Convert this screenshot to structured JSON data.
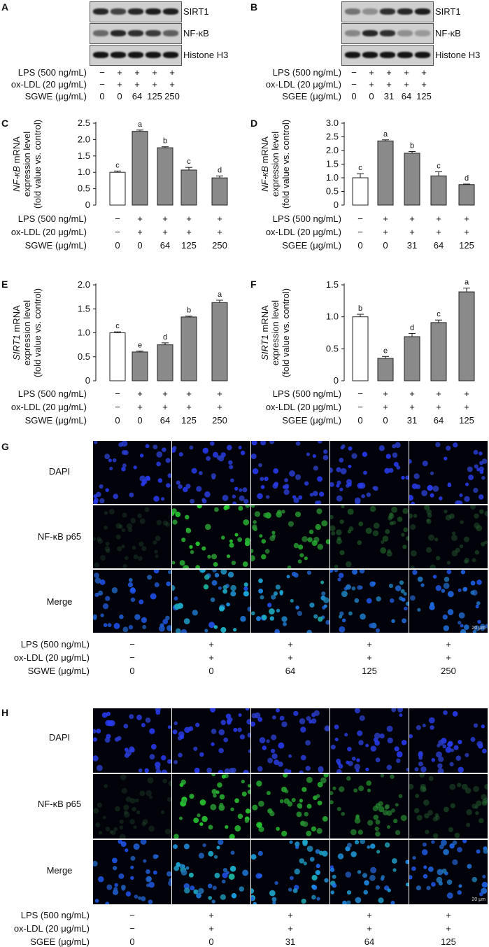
{
  "panels": {
    "A": {
      "label": "A",
      "blots": [
        "SIRT1",
        "NF-κB",
        "Histone H3"
      ],
      "conditions": [
        {
          "label": "LPS (500 ng/mL)",
          "values": [
            "−",
            "+",
            "+",
            "+",
            "+"
          ]
        },
        {
          "label": "ox-LDL (20 μg/mL)",
          "values": [
            "−",
            "+",
            "+",
            "+",
            "+"
          ]
        },
        {
          "label": "SGWE (μg/mL)",
          "values": [
            "0",
            "0",
            "64",
            "125",
            "250"
          ]
        }
      ],
      "band_intensity": {
        "SIRT1": [
          0.85,
          0.7,
          0.85,
          0.9,
          0.9
        ],
        "NF-κB": [
          0.5,
          0.85,
          0.8,
          0.75,
          0.55
        ],
        "Histone H3": [
          0.95,
          0.95,
          0.95,
          0.95,
          0.95
        ]
      }
    },
    "B": {
      "label": "B",
      "blots": [
        "SIRT1",
        "NF-κB",
        "Histone H3"
      ],
      "conditions": [
        {
          "label": "LPS (500 ng/mL)",
          "values": [
            "−",
            "+",
            "+",
            "+",
            "+"
          ]
        },
        {
          "label": "ox-LDL (20 μg/mL)",
          "values": [
            "−",
            "+",
            "+",
            "+",
            "+"
          ]
        },
        {
          "label": "SGEE (μg/mL)",
          "values": [
            "0",
            "0",
            "31",
            "64",
            "125"
          ]
        }
      ],
      "band_intensity": {
        "SIRT1": [
          0.45,
          0.3,
          0.8,
          0.85,
          0.9
        ],
        "NF-κB": [
          0.35,
          0.85,
          0.8,
          0.3,
          0.25
        ],
        "Histone H3": [
          0.95,
          0.95,
          0.95,
          0.95,
          0.95
        ]
      }
    },
    "G": {
      "label": "G",
      "rows": [
        "DAPI",
        "NF-κB p65",
        "Merge"
      ],
      "scale_bar": "20 μm",
      "conditions": [
        {
          "label": "LPS (500 ng/mL)",
          "values": [
            "−",
            "+",
            "+",
            "+",
            "+"
          ]
        },
        {
          "label": "ox-LDL (20 μg/mL)",
          "values": [
            "−",
            "+",
            "+",
            "+",
            "+"
          ]
        },
        {
          "label": "SGWE (μg/mL)",
          "values": [
            "0",
            "0",
            "64",
            "125",
            "250"
          ]
        }
      ],
      "green_level": [
        0.15,
        0.9,
        0.75,
        0.4,
        0.3
      ]
    },
    "H": {
      "label": "H",
      "rows": [
        "DAPI",
        "NF-κB p65",
        "Merge"
      ],
      "scale_bar": "20 μm",
      "conditions": [
        {
          "label": "LPS (500 ng/mL)",
          "values": [
            "−",
            "+",
            "+",
            "+",
            "+"
          ]
        },
        {
          "label": "ox-LDL (20 μg/mL)",
          "values": [
            "−",
            "+",
            "+",
            "+",
            "+"
          ]
        },
        {
          "label": "SGEE (μg/mL)",
          "values": [
            "0",
            "0",
            "31",
            "64",
            "125"
          ]
        }
      ],
      "green_level": [
        0.15,
        0.9,
        0.8,
        0.6,
        0.3
      ]
    }
  },
  "chart_data": [
    {
      "panel": "C",
      "type": "bar",
      "categories": [
        "1",
        "2",
        "3",
        "4",
        "5"
      ],
      "values": [
        1.0,
        2.25,
        1.75,
        1.07,
        0.83
      ],
      "errors": [
        0.04,
        0.04,
        0.03,
        0.08,
        0.06
      ],
      "letters": [
        "c",
        "a",
        "b",
        "c",
        "d"
      ],
      "ylabel_gene": "NF-κB",
      "ylabel_rest": " mRNA",
      "ylabel_2": "expression level",
      "ylabel_3": "(fold value vs. control)",
      "ylim": [
        0,
        2.5
      ],
      "yticks": [
        "0",
        "0.5",
        "1.0",
        "1.5",
        "2.0",
        "2.5"
      ],
      "bar_colors": [
        "#ffffff",
        "#8a8a8a",
        "#8a8a8a",
        "#8a8a8a",
        "#8a8a8a"
      ],
      "conditions": [
        {
          "label": "LPS (500 ng/mL)",
          "values": [
            "−",
            "+",
            "+",
            "+",
            "+"
          ]
        },
        {
          "label": "ox-LDL (20 μg/mL)",
          "values": [
            "−",
            "+",
            "+",
            "+",
            "+"
          ]
        },
        {
          "label": "SGWE (μg/mL)",
          "values": [
            "0",
            "0",
            "64",
            "125",
            "250"
          ]
        }
      ]
    },
    {
      "panel": "D",
      "type": "bar",
      "categories": [
        "1",
        "2",
        "3",
        "4",
        "5"
      ],
      "values": [
        1.0,
        2.35,
        1.9,
        1.07,
        0.75
      ],
      "errors": [
        0.15,
        0.04,
        0.06,
        0.15,
        0.02
      ],
      "letters": [
        "c",
        "a",
        "b",
        "c",
        "d"
      ],
      "ylabel_gene": "NF-κB",
      "ylabel_rest": " mRNA",
      "ylabel_2": "expression level",
      "ylabel_3": "(fold value vs. control)",
      "ylim": [
        0,
        3.0
      ],
      "yticks": [
        "0",
        "0.5",
        "1.0",
        "1.5",
        "2.0",
        "2.5",
        "3.0"
      ],
      "bar_colors": [
        "#ffffff",
        "#8a8a8a",
        "#8a8a8a",
        "#8a8a8a",
        "#8a8a8a"
      ],
      "conditions": [
        {
          "label": "LPS (500 ng/mL)",
          "values": [
            "−",
            "+",
            "+",
            "+",
            "+"
          ]
        },
        {
          "label": "ox-LDL (20 μg/mL)",
          "values": [
            "−",
            "+",
            "+",
            "+",
            "+"
          ]
        },
        {
          "label": "SGEE (μg/mL)",
          "values": [
            "0",
            "0",
            "31",
            "64",
            "125"
          ]
        }
      ]
    },
    {
      "panel": "E",
      "type": "bar",
      "categories": [
        "1",
        "2",
        "3",
        "4",
        "5"
      ],
      "values": [
        1.0,
        0.6,
        0.75,
        1.33,
        1.63
      ],
      "errors": [
        0.02,
        0.02,
        0.04,
        0.02,
        0.05
      ],
      "letters": [
        "c",
        "e",
        "d",
        "b",
        "a"
      ],
      "ylabel_gene": "SIRT1",
      "ylabel_rest": " mRNA",
      "ylabel_2": "expression level",
      "ylabel_3": "(fold value vs. control)",
      "ylim": [
        0,
        2.0
      ],
      "yticks": [
        "0",
        "0.5",
        "1.0",
        "1.5",
        "2.0"
      ],
      "bar_colors": [
        "#ffffff",
        "#8a8a8a",
        "#8a8a8a",
        "#8a8a8a",
        "#8a8a8a"
      ],
      "conditions": [
        {
          "label": "LPS (500 ng/mL)",
          "values": [
            "−",
            "+",
            "+",
            "+",
            "+"
          ]
        },
        {
          "label": "ox-LDL (20 μg/mL)",
          "values": [
            "−",
            "+",
            "+",
            "+",
            "+"
          ]
        },
        {
          "label": "SGWE (μg/mL)",
          "values": [
            "0",
            "0",
            "64",
            "125",
            "250"
          ]
        }
      ]
    },
    {
      "panel": "F",
      "type": "bar",
      "categories": [
        "1",
        "2",
        "3",
        "4",
        "5"
      ],
      "values": [
        1.0,
        0.35,
        0.69,
        0.91,
        1.39
      ],
      "errors": [
        0.04,
        0.03,
        0.05,
        0.04,
        0.06
      ],
      "letters": [
        "b",
        "e",
        "d",
        "c",
        "a"
      ],
      "ylabel_gene": "SIRT1",
      "ylabel_rest": " mRNA",
      "ylabel_2": "expression level",
      "ylabel_3": "(fold value vs. control)",
      "ylim": [
        0,
        1.5
      ],
      "yticks": [
        "0",
        "0.5",
        "1.0",
        "1.5"
      ],
      "bar_colors": [
        "#ffffff",
        "#8a8a8a",
        "#8a8a8a",
        "#8a8a8a",
        "#8a8a8a"
      ],
      "conditions": [
        {
          "label": "LPS (500 ng/mL)",
          "values": [
            "−",
            "+",
            "+",
            "+",
            "+"
          ]
        },
        {
          "label": "ox-LDL (20 μg/mL)",
          "values": [
            "−",
            "+",
            "+",
            "+",
            "+"
          ]
        },
        {
          "label": "SGEE (μg/mL)",
          "values": [
            "0",
            "0",
            "31",
            "64",
            "125"
          ]
        }
      ]
    }
  ]
}
